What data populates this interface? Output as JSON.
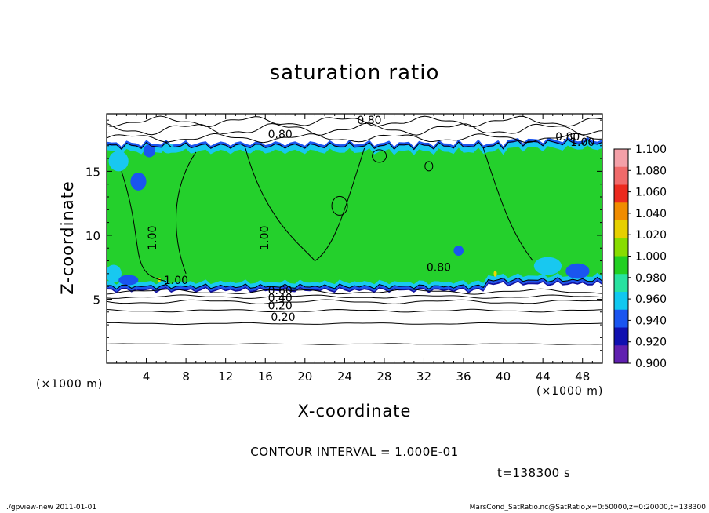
{
  "chart_data": {
    "type": "heatmap",
    "title": "saturation ratio",
    "xlabel": "X-coordinate",
    "ylabel": "Z-coordinate",
    "x_unit_label": "(×1000 m)",
    "xlim": [
      0,
      50
    ],
    "ylim": [
      0,
      19.5
    ],
    "x_ticks": [
      4,
      8,
      12,
      16,
      20,
      24,
      28,
      32,
      36,
      40,
      44,
      48
    ],
    "y_ticks": [
      5,
      10,
      15
    ],
    "colorbar": {
      "levels": [
        "1.100",
        "1.080",
        "1.060",
        "1.040",
        "1.020",
        "1.000",
        "0.980",
        "0.960",
        "0.940",
        "0.920",
        "0.900"
      ],
      "colors": [
        "#f4a0a8",
        "#f06a6a",
        "#ec2a1e",
        "#f08c00",
        "#e6d000",
        "#88dc00",
        "#22d022",
        "#28e2a0",
        "#10c8f0",
        "#1a55f0",
        "#1010b0",
        "#6020b0"
      ]
    },
    "fill_colors": {
      "saturated": "#24d02c",
      "edge_light": "#18c8f0",
      "edge_dark": "#1a55f0",
      "edge_deep": "#1010a0",
      "highlight": "#f0d800"
    },
    "contour_labels": [
      "0.80",
      "0.80",
      "0.80",
      "1.00",
      "1.00",
      "1.00",
      "1.00",
      "0.80",
      "0.60",
      "0.40",
      "0.20"
    ],
    "contour_interval": "CONTOUR INTERVAL = 1.000E-01",
    "time": "t=138300 s"
  },
  "footer": {
    "left": "./gpview-new   2011-01-01",
    "right": "MarsCond_SatRatio.nc@SatRatio,x=0:50000,z=0:20000,t=138300"
  }
}
